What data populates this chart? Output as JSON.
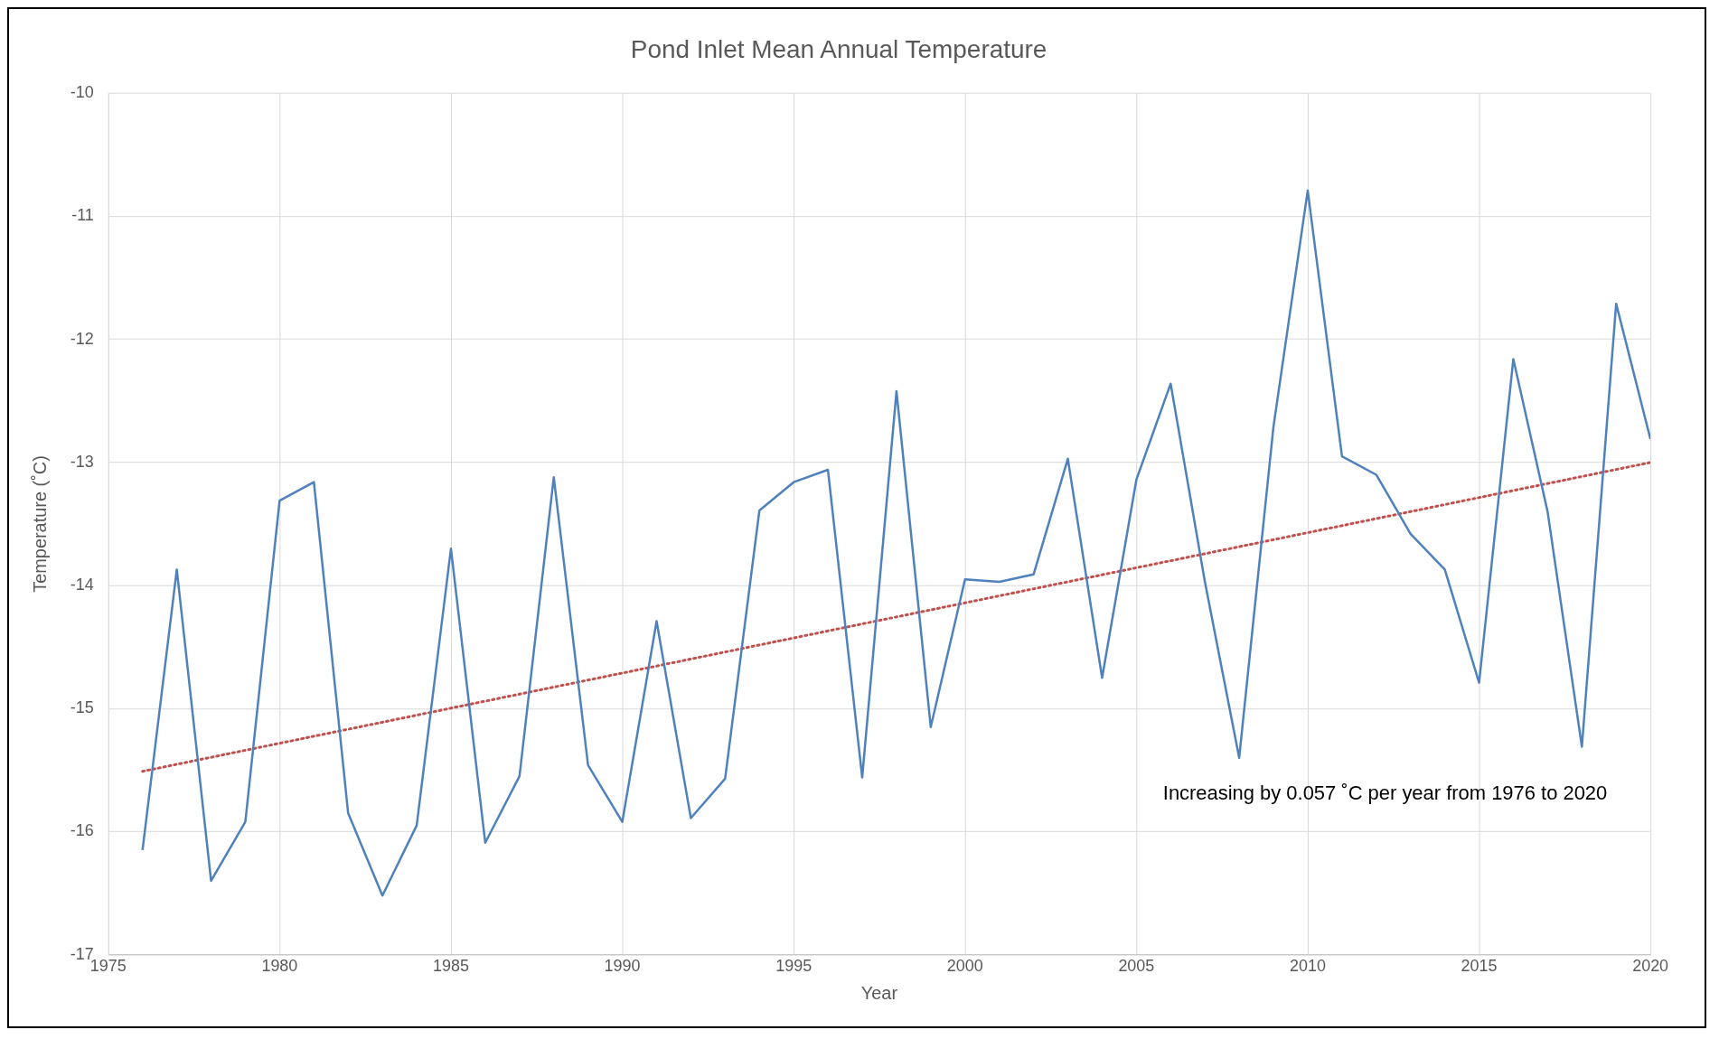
{
  "chart_data": {
    "type": "line",
    "title": "Pond Inlet Mean Annual Temperature",
    "xlabel": "Year",
    "ylabel": "Temperature (˚C)",
    "x": [
      1976,
      1977,
      1978,
      1979,
      1980,
      1981,
      1982,
      1983,
      1984,
      1985,
      1986,
      1987,
      1988,
      1989,
      1990,
      1991,
      1992,
      1993,
      1994,
      1995,
      1996,
      1997,
      1998,
      1999,
      2000,
      2001,
      2002,
      2003,
      2004,
      2005,
      2006,
      2007,
      2008,
      2009,
      2010,
      2011,
      2012,
      2013,
      2014,
      2015,
      2016,
      2017,
      2018,
      2019,
      2020
    ],
    "series": [
      {
        "color": "#4f81bd",
        "line_style": "solid",
        "values": [
          -16.15,
          -13.87,
          -16.4,
          -15.92,
          -13.31,
          -13.16,
          -15.85,
          -16.52,
          -15.95,
          -13.7,
          -16.09,
          -15.55,
          -13.12,
          -15.46,
          -15.92,
          -14.29,
          -15.89,
          -15.57,
          -13.39,
          -13.16,
          -13.06,
          -15.56,
          -12.42,
          -15.15,
          -13.95,
          -13.97,
          -13.91,
          -12.97,
          -14.75,
          -13.14,
          -12.36,
          -13.97,
          -15.4,
          -12.71,
          -10.79,
          -12.95,
          -13.1,
          -13.58,
          -13.87,
          -14.79,
          -12.16,
          -13.4,
          -15.31,
          -11.71,
          -12.81
        ]
      },
      {
        "type": "line",
        "color": "#c0504d",
        "line_style": "dotted",
        "x": [
          1976,
          2020
        ],
        "values": [
          -15.51,
          -13.0
        ]
      }
    ],
    "xlim": [
      1975,
      2020
    ],
    "xticks": [
      1975,
      1980,
      1985,
      1990,
      1995,
      2000,
      2005,
      2010,
      2015,
      2020
    ],
    "ylim": [
      -17,
      -10
    ],
    "yticks": [
      -17,
      -16,
      -15,
      -14,
      -13,
      -12,
      -11,
      -10
    ],
    "grid": true,
    "legend": false,
    "marker": "none",
    "annotations": [
      "Increasing by 0.057 ˚C per year from 1976 to 2020"
    ]
  }
}
